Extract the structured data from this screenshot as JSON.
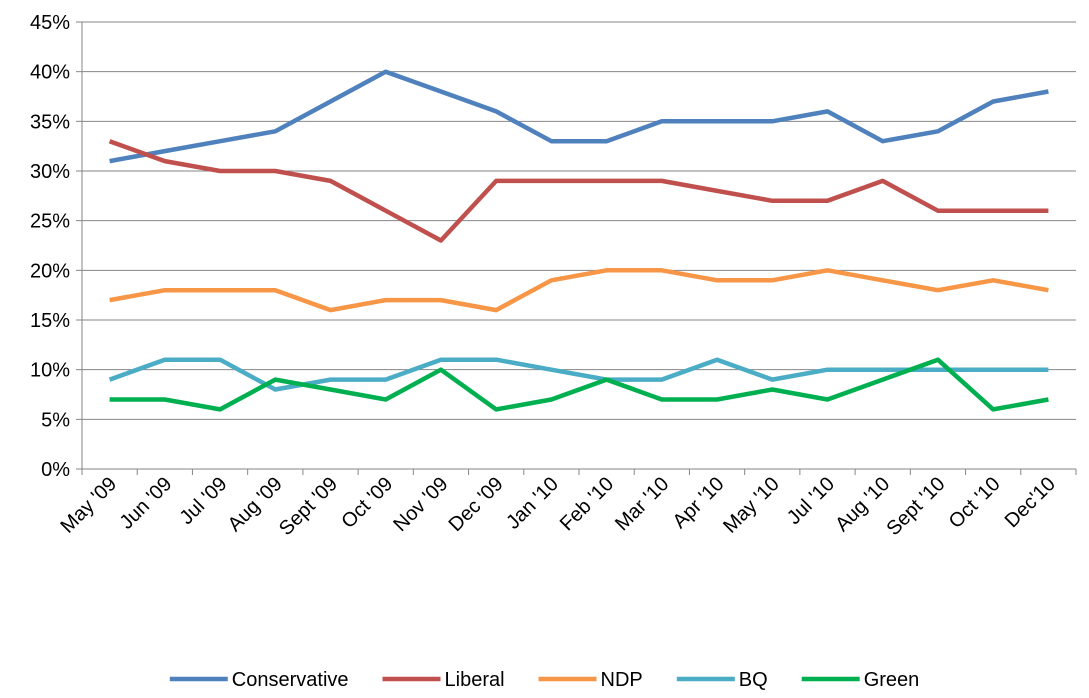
{
  "chart_data": {
    "type": "line",
    "categories": [
      "May '09",
      "Jun '09",
      "Jul '09",
      "Aug '09",
      "Sept '09",
      "Oct '09",
      "Nov '09",
      "Dec '09",
      "Jan '10",
      "Feb '10",
      "Mar '10",
      "Apr '10",
      "May '10",
      "Jul '10",
      "Aug '10",
      "Sept '10",
      "Oct '10",
      "Dec'10"
    ],
    "y_ticks": [
      "0%",
      "5%",
      "10%",
      "15%",
      "20%",
      "25%",
      "30%",
      "35%",
      "40%",
      "45%"
    ],
    "ylim": [
      0,
      45
    ],
    "ystep": 5,
    "grid": true,
    "legend_position": "bottom",
    "series": [
      {
        "name": "Conservative",
        "color": "#4F81BD",
        "values": [
          31,
          32,
          33,
          34,
          37,
          40,
          38,
          36,
          33,
          33,
          35,
          35,
          35,
          36,
          33,
          34,
          37,
          38
        ]
      },
      {
        "name": "Liberal",
        "color": "#C0504D",
        "values": [
          33,
          31,
          30,
          30,
          29,
          26,
          23,
          29,
          29,
          29,
          29,
          28,
          27,
          27,
          29,
          26,
          26,
          26
        ]
      },
      {
        "name": "NDP",
        "color": "#F79646",
        "values": [
          17,
          18,
          18,
          18,
          16,
          17,
          17,
          16,
          19,
          20,
          20,
          19,
          19,
          20,
          19,
          18,
          19,
          18
        ]
      },
      {
        "name": "BQ",
        "color": "#4BACC6",
        "values": [
          9,
          11,
          11,
          8,
          9,
          9,
          11,
          11,
          10,
          9,
          9,
          11,
          9,
          10,
          10,
          10,
          10,
          10
        ]
      },
      {
        "name": "Green",
        "color": "#00B050",
        "values": [
          7,
          7,
          6,
          9,
          8,
          7,
          10,
          6,
          7,
          9,
          7,
          7,
          8,
          7,
          9,
          11,
          6,
          7
        ]
      }
    ]
  }
}
